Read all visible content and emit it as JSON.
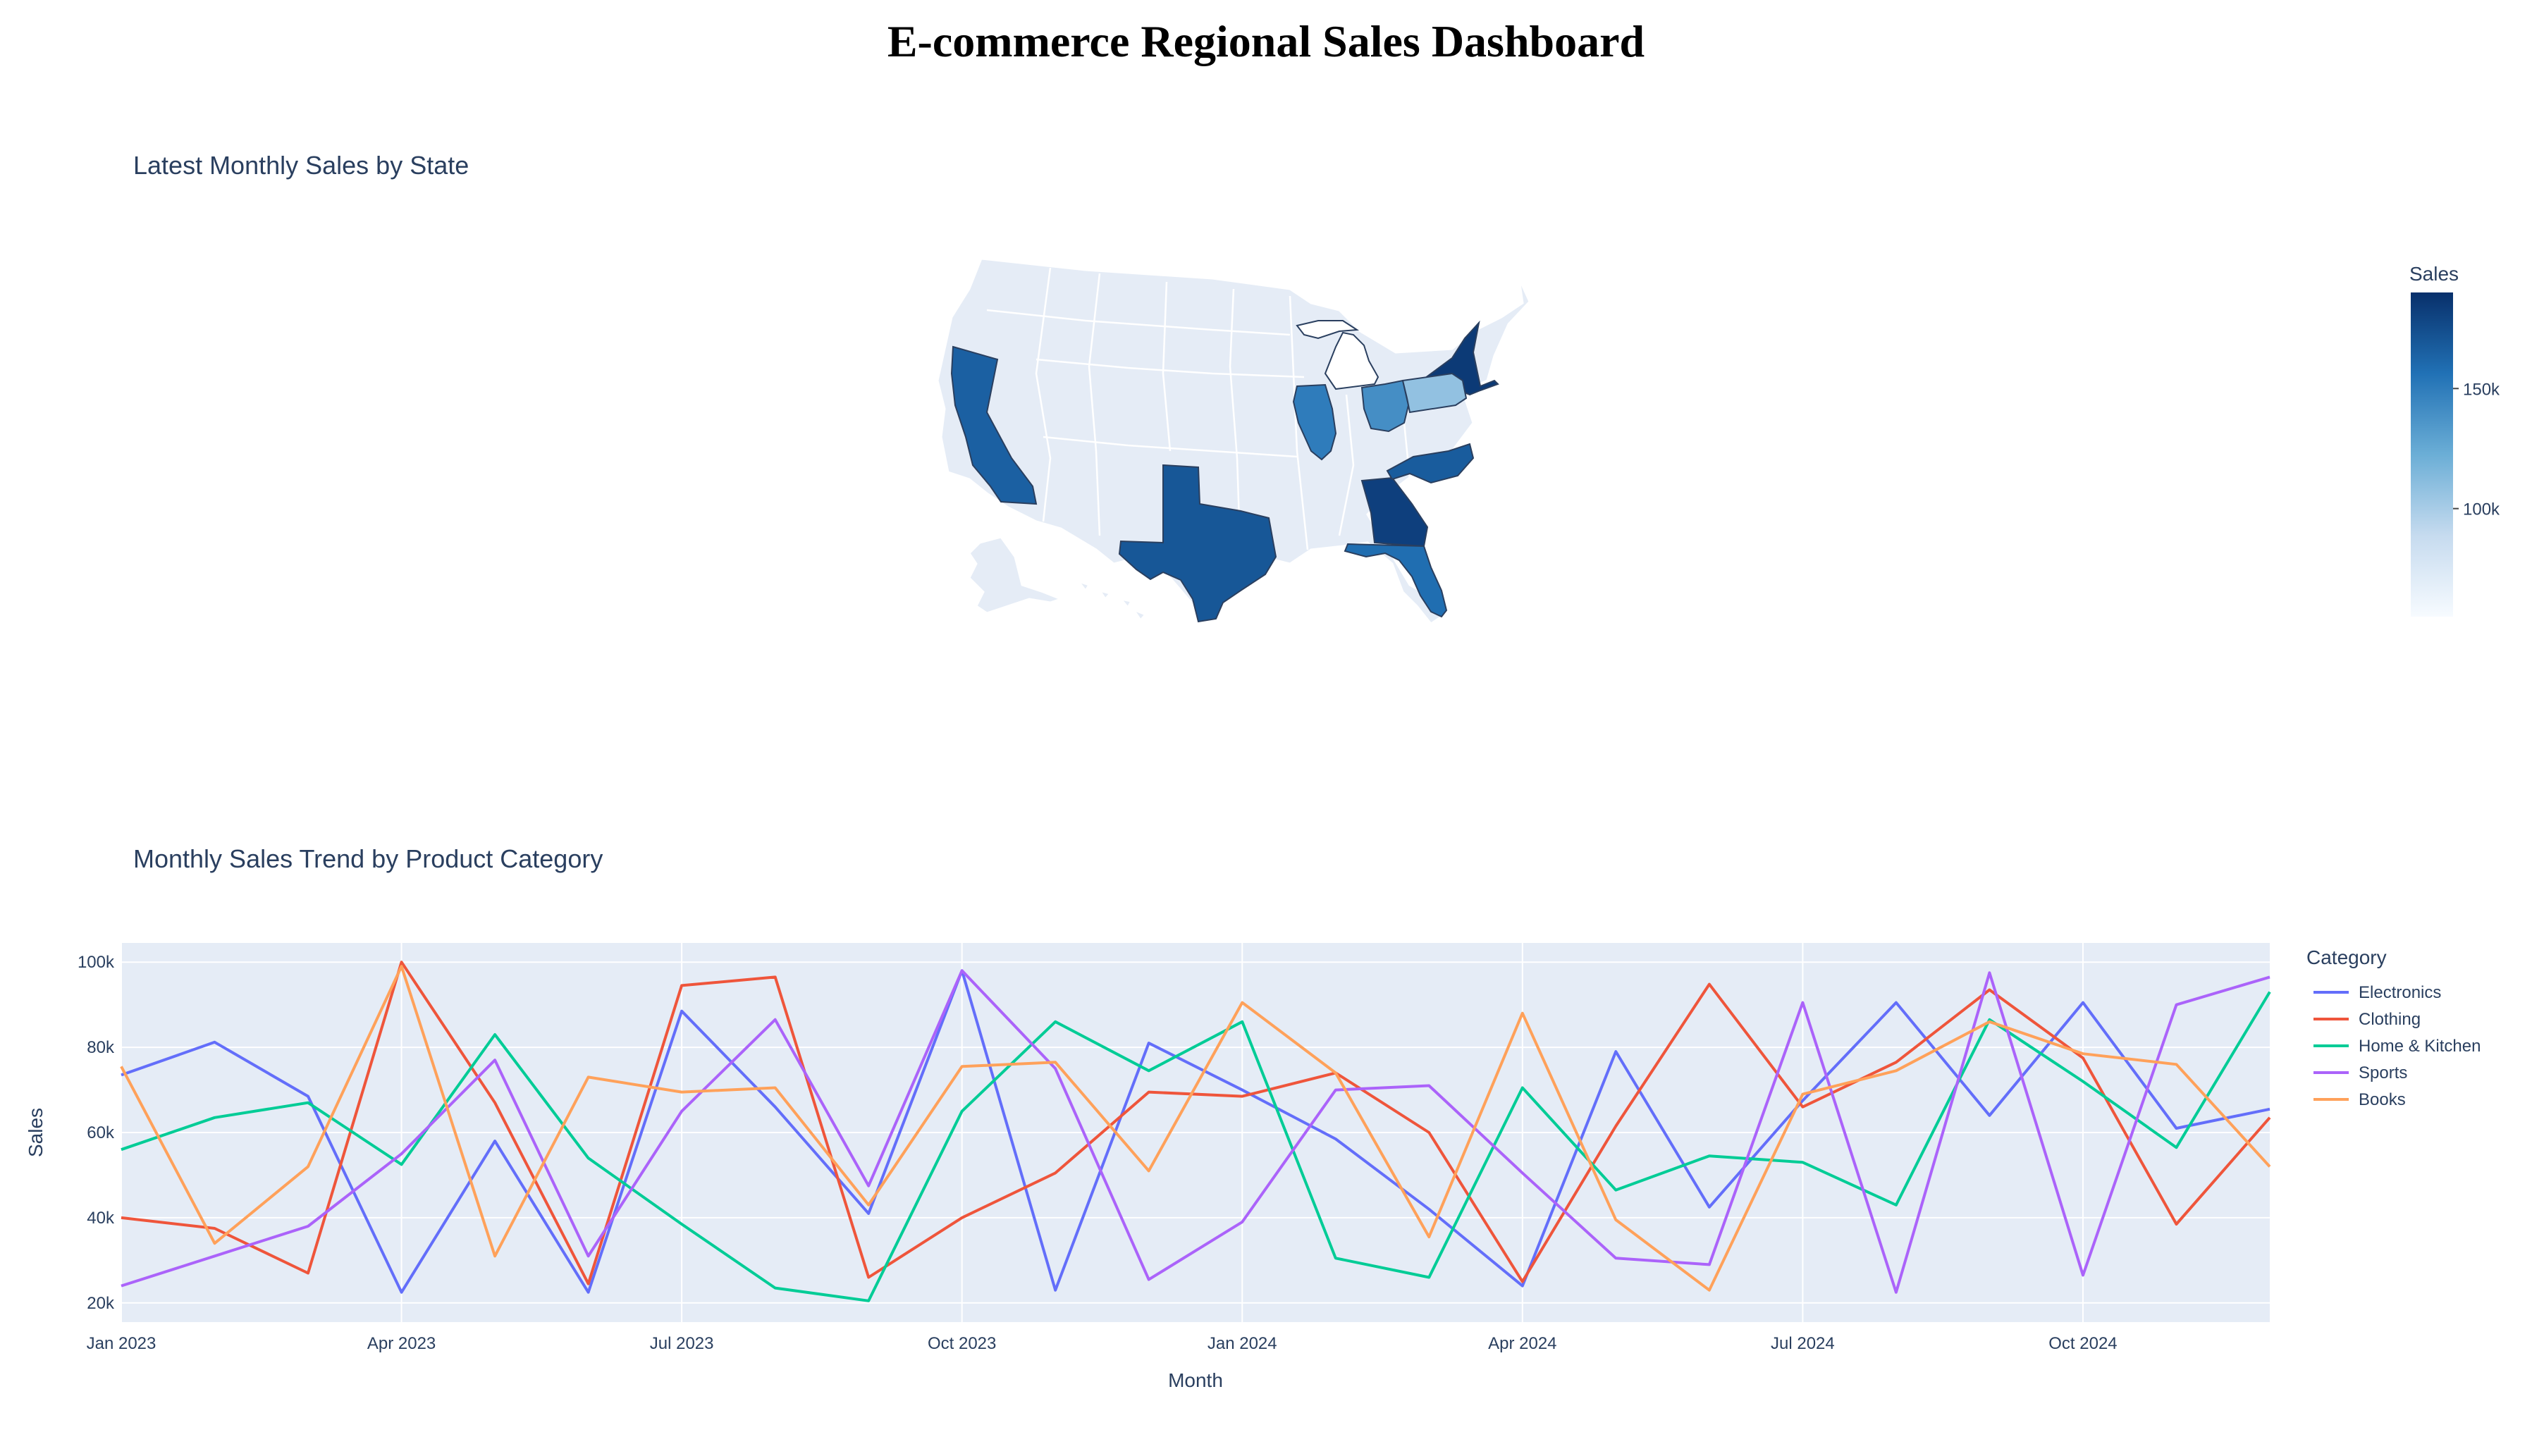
{
  "title": "E-commerce Regional Sales Dashboard",
  "map": {
    "title": "Latest Monthly Sales by State",
    "colorbar_title": "Sales",
    "colorbar_ticks": [
      {
        "label": "100k",
        "value": 100000
      },
      {
        "label": "150k",
        "value": 150000
      }
    ],
    "zmin": 55000,
    "zmax": 190000,
    "colorscale": [
      "#f7fbff",
      "#c6dbef",
      "#6baed6",
      "#2171b5",
      "#08306b"
    ],
    "states": [
      {
        "code": "CA",
        "value": 165000
      },
      {
        "code": "TX",
        "value": 170000
      },
      {
        "code": "NY",
        "value": 185000
      },
      {
        "code": "GA",
        "value": 182000
      },
      {
        "code": "FL",
        "value": 158000
      },
      {
        "code": "NC",
        "value": 167000
      },
      {
        "code": "IL",
        "value": 150000
      },
      {
        "code": "OH",
        "value": 140000
      },
      {
        "code": "PA",
        "value": 108000
      },
      {
        "code": "MI",
        "value": 55000
      }
    ]
  },
  "chart_data": {
    "type": "line",
    "title": "Monthly Sales Trend by Product Category",
    "xlabel": "Month",
    "ylabel": "Sales",
    "legend_title": "Category",
    "x": [
      "2023-01",
      "2023-02",
      "2023-03",
      "2023-04",
      "2023-05",
      "2023-06",
      "2023-07",
      "2023-08",
      "2023-09",
      "2023-10",
      "2023-11",
      "2023-12",
      "2024-01",
      "2024-02",
      "2024-03",
      "2024-04",
      "2024-05",
      "2024-06",
      "2024-07",
      "2024-08",
      "2024-09",
      "2024-10",
      "2024-11",
      "2024-12"
    ],
    "x_ticks": [
      {
        "label": "Jan 2023",
        "index": 0
      },
      {
        "label": "Apr 2023",
        "index": 3
      },
      {
        "label": "Jul 2023",
        "index": 6
      },
      {
        "label": "Oct 2023",
        "index": 9
      },
      {
        "label": "Jan 2024",
        "index": 12
      },
      {
        "label": "Apr 2024",
        "index": 15
      },
      {
        "label": "Jul 2024",
        "index": 18
      },
      {
        "label": "Oct 2024",
        "index": 21
      }
    ],
    "y_ticks": [
      {
        "label": "20k",
        "value": 20000
      },
      {
        "label": "40k",
        "value": 40000
      },
      {
        "label": "60k",
        "value": 60000
      },
      {
        "label": "80k",
        "value": 80000
      },
      {
        "label": "100k",
        "value": 100000
      }
    ],
    "ylim": [
      15500,
      104500
    ],
    "series": [
      {
        "name": "Electronics",
        "color": "#636efa",
        "values": [
          73500,
          81200,
          68500,
          22500,
          58000,
          22500,
          88500,
          66000,
          41000,
          98000,
          23000,
          81000,
          70000,
          58500,
          42000,
          24000,
          79000,
          42500,
          67500,
          90500,
          64000,
          90500,
          61000,
          65500
        ]
      },
      {
        "name": "Clothing",
        "color": "#ef553b",
        "values": [
          40000,
          37500,
          27000,
          100000,
          67000,
          24500,
          94500,
          96500,
          26000,
          40000,
          50500,
          69500,
          68500,
          74000,
          60000,
          25000,
          61500,
          94800,
          66000,
          76500,
          93500,
          77500,
          38500,
          63500
        ]
      },
      {
        "name": "Home & Kitchen",
        "color": "#00cc96",
        "values": [
          56000,
          63500,
          67000,
          52500,
          83000,
          54000,
          38500,
          23500,
          20500,
          65000,
          86000,
          74500,
          86000,
          30500,
          26000,
          70500,
          46500,
          54500,
          53000,
          43000,
          86500,
          72000,
          56500,
          93000
        ]
      },
      {
        "name": "Sports",
        "color": "#ab63fa",
        "values": [
          24000,
          31000,
          38000,
          55000,
          77000,
          31000,
          65000,
          86500,
          47500,
          98000,
          75000,
          25500,
          39000,
          70000,
          71000,
          50500,
          30500,
          29000,
          90500,
          22500,
          97500,
          26500,
          90000,
          96500
        ]
      },
      {
        "name": "Books",
        "color": "#ffa15a",
        "values": [
          75500,
          34000,
          52000,
          99000,
          31000,
          73000,
          69500,
          70500,
          43000,
          75500,
          76500,
          51000,
          90500,
          74000,
          35500,
          88000,
          39500,
          23000,
          69000,
          74500,
          86000,
          78500,
          76000,
          52000
        ]
      }
    ]
  }
}
